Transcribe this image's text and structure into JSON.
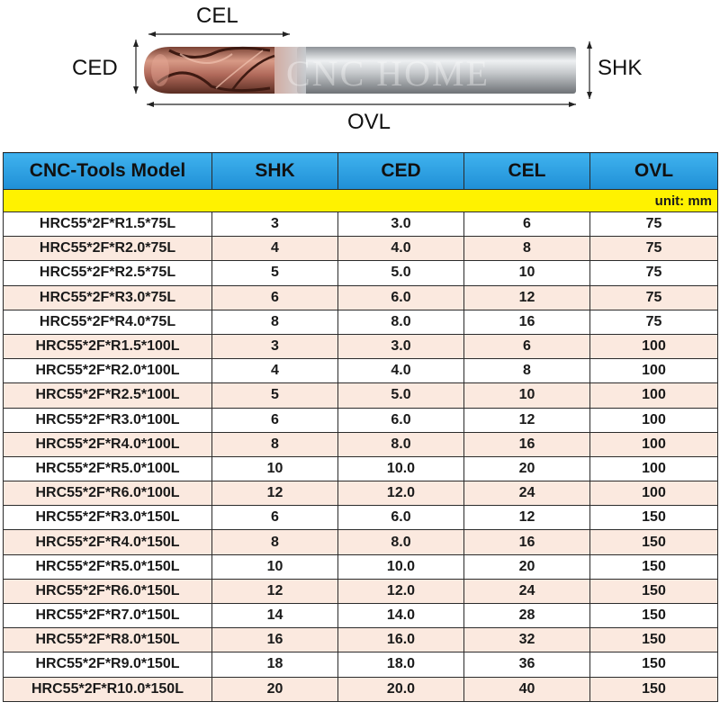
{
  "diagram": {
    "labels": {
      "cel": "CEL",
      "ced": "CED",
      "shk": "SHK",
      "ovl": "OVL"
    },
    "watermark": "CNC HOME",
    "colors": {
      "coating": "#b8705f",
      "shank": "#c9ccd0"
    }
  },
  "table": {
    "headers": [
      "CNC-Tools Model",
      "SHK",
      "CED",
      "CEL",
      "OVL"
    ],
    "unit": "unit: mm",
    "colors": {
      "header": "#2196dc",
      "unit_bar": "#fff200",
      "alt_row": "#fbe9df"
    },
    "rows": [
      [
        "HRC55*2F*R1.5*75L",
        "3",
        "3.0",
        "6",
        "75"
      ],
      [
        "HRC55*2F*R2.0*75L",
        "4",
        "4.0",
        "8",
        "75"
      ],
      [
        "HRC55*2F*R2.5*75L",
        "5",
        "5.0",
        "10",
        "75"
      ],
      [
        "HRC55*2F*R3.0*75L",
        "6",
        "6.0",
        "12",
        "75"
      ],
      [
        "HRC55*2F*R4.0*75L",
        "8",
        "8.0",
        "16",
        "75"
      ],
      [
        "HRC55*2F*R1.5*100L",
        "3",
        "3.0",
        "6",
        "100"
      ],
      [
        "HRC55*2F*R2.0*100L",
        "4",
        "4.0",
        "8",
        "100"
      ],
      [
        "HRC55*2F*R2.5*100L",
        "5",
        "5.0",
        "10",
        "100"
      ],
      [
        "HRC55*2F*R3.0*100L",
        "6",
        "6.0",
        "12",
        "100"
      ],
      [
        "HRC55*2F*R4.0*100L",
        "8",
        "8.0",
        "16",
        "100"
      ],
      [
        "HRC55*2F*R5.0*100L",
        "10",
        "10.0",
        "20",
        "100"
      ],
      [
        "HRC55*2F*R6.0*100L",
        "12",
        "12.0",
        "24",
        "100"
      ],
      [
        "HRC55*2F*R3.0*150L",
        "6",
        "6.0",
        "12",
        "150"
      ],
      [
        "HRC55*2F*R4.0*150L",
        "8",
        "8.0",
        "16",
        "150"
      ],
      [
        "HRC55*2F*R5.0*150L",
        "10",
        "10.0",
        "20",
        "150"
      ],
      [
        "HRC55*2F*R6.0*150L",
        "12",
        "12.0",
        "24",
        "150"
      ],
      [
        "HRC55*2F*R7.0*150L",
        "14",
        "14.0",
        "28",
        "150"
      ],
      [
        "HRC55*2F*R8.0*150L",
        "16",
        "16.0",
        "32",
        "150"
      ],
      [
        "HRC55*2F*R9.0*150L",
        "18",
        "18.0",
        "36",
        "150"
      ],
      [
        "HRC55*2F*R10.0*150L",
        "20",
        "20.0",
        "40",
        "150"
      ]
    ]
  }
}
